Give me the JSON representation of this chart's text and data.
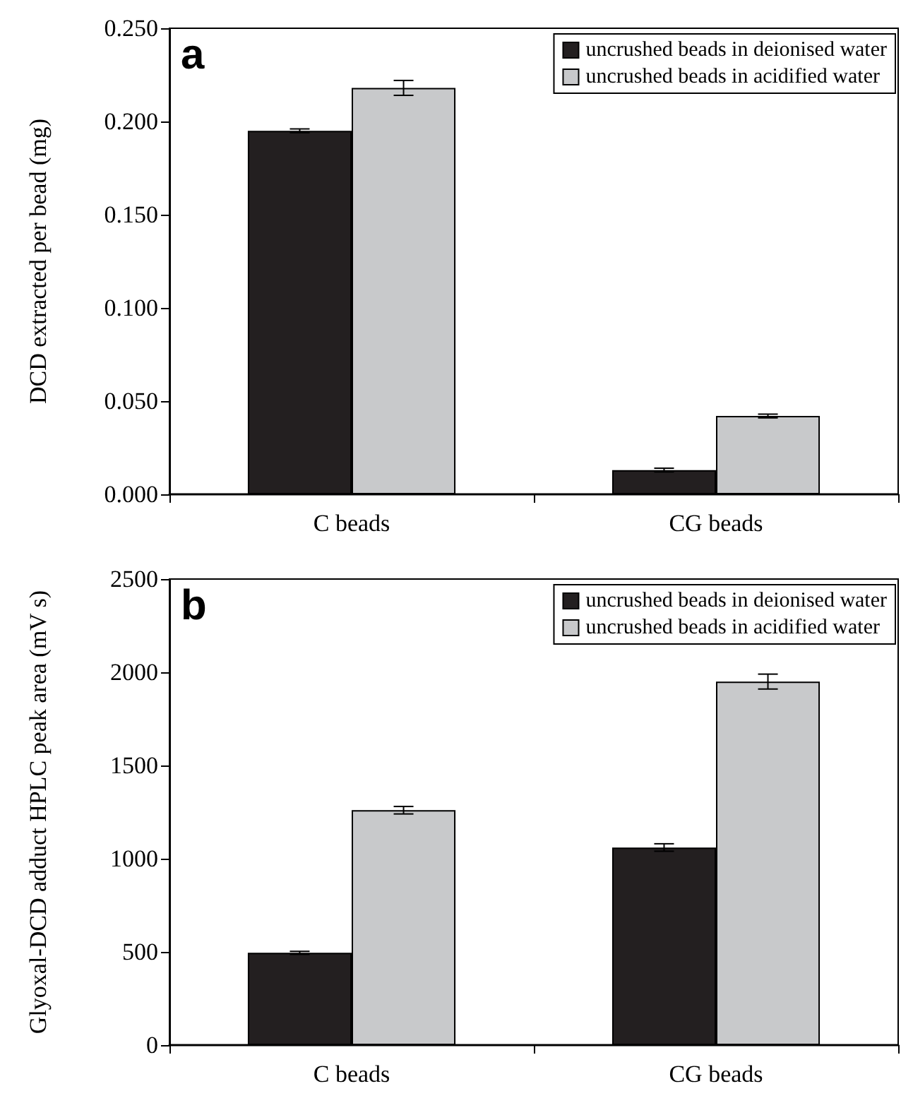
{
  "chart_data": [
    {
      "type": "bar",
      "ylabel": "DCD extracted per bead (mg)",
      "annotations": [
        "a"
      ],
      "categories": [
        "C beads",
        "CG beads"
      ],
      "series": [
        {
          "name": "uncrushed beads in deionised water",
          "color": "#231f20",
          "values": [
            0.195,
            0.013
          ],
          "errors": [
            0.001,
            0.001
          ]
        },
        {
          "name": "uncrushed beads in acidified water",
          "color": "#c8c9cb",
          "values": [
            0.218,
            0.042
          ],
          "errors": [
            0.004,
            0.001
          ]
        }
      ],
      "ylim": [
        0,
        0.25
      ],
      "yticks": [
        {
          "value": 0,
          "label": "0.000"
        },
        {
          "value": 0.05,
          "label": "0.050"
        },
        {
          "value": 0.1,
          "label": "0.100"
        },
        {
          "value": 0.15,
          "label": "0.150"
        },
        {
          "value": 0.2,
          "label": "0.200"
        },
        {
          "value": 0.25,
          "label": "0.250"
        }
      ],
      "legend": "top right",
      "grid": false
    },
    {
      "type": "bar",
      "ylabel": "Glyoxal-DCD adduct HPLC peak area (mV s)",
      "annotations": [
        "b"
      ],
      "categories": [
        "C beads",
        "CG beads"
      ],
      "series": [
        {
          "name": "uncrushed beads in deionised water",
          "color": "#231f20",
          "values": [
            495,
            1060
          ],
          "errors": [
            8,
            20
          ]
        },
        {
          "name": "uncrushed beads in acidified water",
          "color": "#c8c9cb",
          "values": [
            1260,
            1950
          ],
          "errors": [
            20,
            40
          ]
        }
      ],
      "ylim": [
        0,
        2500
      ],
      "yticks": [
        0,
        500,
        1000,
        1500,
        2000,
        2500
      ],
      "legend": "top right",
      "grid": false
    }
  ]
}
